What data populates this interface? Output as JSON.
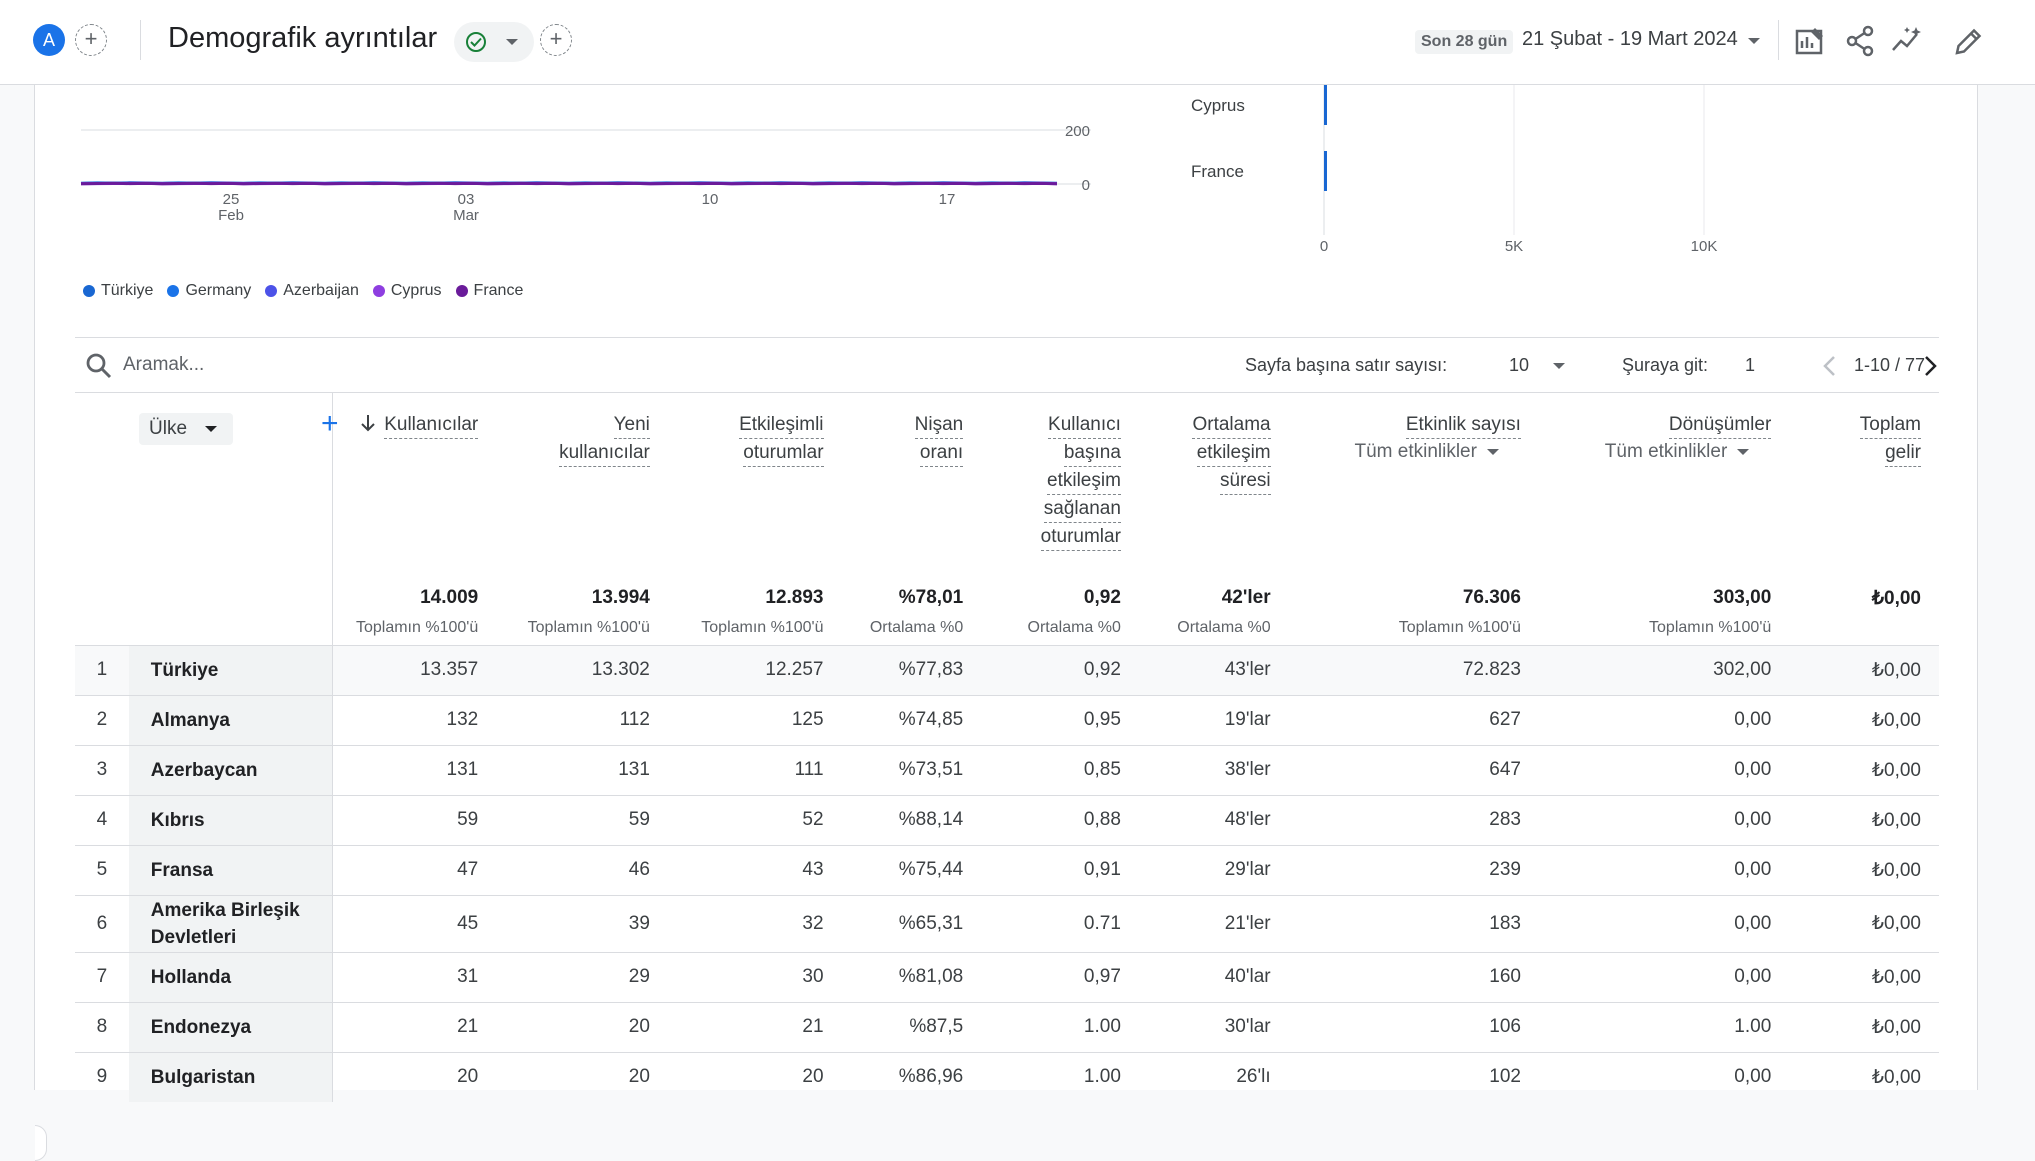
{
  "header": {
    "avatar_letter": "A",
    "add_icon": "+",
    "title": "Demografik ayrıntılar",
    "range_label": "Son 28 gün",
    "range_dates": "21 Şubat - 19 Mart 2024",
    "icons": [
      "customize-report-icon",
      "share-icon",
      "insights-icon",
      "edit-icon"
    ]
  },
  "line_chart": {
    "y_ticks": [
      "200",
      "0"
    ],
    "x_ticks": [
      {
        "day": "25",
        "month": "Feb"
      },
      {
        "day": "03",
        "month": "Mar"
      },
      {
        "day": "10",
        "month": ""
      },
      {
        "day": "17",
        "month": ""
      }
    ],
    "legend": [
      {
        "name": "Türkiye",
        "color": "#1967d2"
      },
      {
        "name": "Germany",
        "color": "#1a73e8"
      },
      {
        "name": "Azerbaijan",
        "color": "#4c52e8"
      },
      {
        "name": "Cyprus",
        "color": "#8e3ee0"
      },
      {
        "name": "France",
        "color": "#6a1b9a"
      }
    ]
  },
  "bar_chart": {
    "categories": [
      "Cyprus",
      "France"
    ],
    "x_ticks": [
      "0",
      "5K",
      "10K"
    ]
  },
  "chart_data": [
    {
      "type": "line",
      "x": [
        "25 Feb",
        "03 Mar",
        "10",
        "17"
      ],
      "ylim": [
        0,
        200
      ],
      "series": [
        {
          "name": "Türkiye",
          "values": [
            3,
            3,
            3,
            3
          ]
        },
        {
          "name": "Germany",
          "values": [
            2,
            2,
            2,
            2
          ]
        },
        {
          "name": "Azerbaijan",
          "values": [
            2,
            2,
            2,
            2
          ]
        },
        {
          "name": "Cyprus",
          "values": [
            1,
            1,
            1,
            1
          ]
        },
        {
          "name": "France",
          "values": [
            1,
            1,
            1,
            1
          ]
        }
      ]
    },
    {
      "type": "bar",
      "orientation": "horizontal",
      "categories": [
        "Cyprus",
        "France"
      ],
      "values": [
        59,
        47
      ],
      "xlim": [
        0,
        12000
      ]
    }
  ],
  "toolbar": {
    "search_placeholder": "Aramak...",
    "rows_label": "Sayfa başına satır sayısı:",
    "rows_value": "10",
    "goto_label": "Şuraya git:",
    "goto_value": "1",
    "page_info": "1-10 / 77"
  },
  "table": {
    "dimension": "Ülke",
    "columns": [
      {
        "lines": [
          "Kullanıcılar"
        ],
        "sorted": true
      },
      {
        "lines": [
          "Yeni",
          "kullanıcılar"
        ]
      },
      {
        "lines": [
          "Etkileşimli",
          "oturumlar"
        ]
      },
      {
        "lines": [
          "Nişan",
          "oranı"
        ]
      },
      {
        "lines": [
          "Kullanıcı",
          "başına",
          "etkileşim",
          "sağlanan",
          "oturumlar"
        ]
      },
      {
        "lines": [
          "Ortalama",
          "etkileşim",
          "süresi"
        ]
      },
      {
        "lines": [
          "Etkinlik sayısı"
        ],
        "sub": "Tüm etkinlikler"
      },
      {
        "lines": [
          "Dönüşümler"
        ],
        "sub": "Tüm etkinlikler"
      },
      {
        "lines": [
          "Toplam",
          "gelir"
        ]
      }
    ],
    "totals": [
      {
        "value": "14.009",
        "sub": "Toplamın %100'ü"
      },
      {
        "value": "13.994",
        "sub": "Toplamın %100'ü"
      },
      {
        "value": "12.893",
        "sub": "Toplamın %100'ü"
      },
      {
        "value": "%78,01",
        "sub": "Ortalama %0"
      },
      {
        "value": "0,92",
        "sub": "Ortalama %0"
      },
      {
        "value": "42'ler",
        "sub": "Ortalama %0"
      },
      {
        "value": "76.306",
        "sub": "Toplamın %100'ü"
      },
      {
        "value": "303,00",
        "sub": "Toplamın %100'ü"
      },
      {
        "value": "₺0,00",
        "sub": ""
      }
    ],
    "rows": [
      {
        "rank": "1",
        "country": "Türkiye",
        "cells": [
          "13.357",
          "13.302",
          "12.257",
          "%77,83",
          "0,92",
          "43'ler",
          "72.823",
          "302,00",
          "₺0,00"
        ]
      },
      {
        "rank": "2",
        "country": "Almanya",
        "cells": [
          "132",
          "112",
          "125",
          "%74,85",
          "0,95",
          "19'lar",
          "627",
          "0,00",
          "₺0,00"
        ]
      },
      {
        "rank": "3",
        "country": "Azerbaycan",
        "cells": [
          "131",
          "131",
          "111",
          "%73,51",
          "0,85",
          "38'ler",
          "647",
          "0,00",
          "₺0,00"
        ]
      },
      {
        "rank": "4",
        "country": "Kıbrıs",
        "cells": [
          "59",
          "59",
          "52",
          "%88,14",
          "0,88",
          "48'ler",
          "283",
          "0,00",
          "₺0,00"
        ]
      },
      {
        "rank": "5",
        "country": "Fransa",
        "cells": [
          "47",
          "46",
          "43",
          "%75,44",
          "0,91",
          "29'lar",
          "239",
          "0,00",
          "₺0,00"
        ]
      },
      {
        "rank": "6",
        "country": "Amerika Birleşik Devletleri",
        "cells": [
          "45",
          "39",
          "32",
          "%65,31",
          "0.71",
          "21'ler",
          "183",
          "0,00",
          "₺0,00"
        ]
      },
      {
        "rank": "7",
        "country": "Hollanda",
        "cells": [
          "31",
          "29",
          "30",
          "%81,08",
          "0,97",
          "40'lar",
          "160",
          "0,00",
          "₺0,00"
        ]
      },
      {
        "rank": "8",
        "country": "Endonezya",
        "cells": [
          "21",
          "20",
          "21",
          "%87,5",
          "1.00",
          "30'lar",
          "106",
          "1.00",
          "₺0,00"
        ]
      },
      {
        "rank": "9",
        "country": "Bulgaristan",
        "cells": [
          "20",
          "20",
          "20",
          "%86,96",
          "1.00",
          "26'lı",
          "102",
          "0,00",
          "₺0,00"
        ]
      }
    ]
  }
}
